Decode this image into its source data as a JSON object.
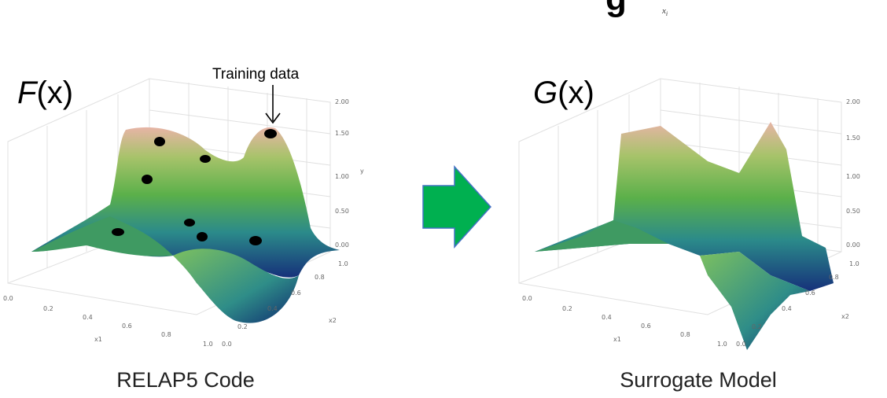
{
  "header": {
    "math_fragment": "g",
    "subscript": "x_i"
  },
  "left": {
    "function_name": "F",
    "function_arg": "(x)",
    "caption": "RELAP5 Code",
    "annotation": "Training data"
  },
  "right": {
    "function_name": "G",
    "function_arg": "(x)",
    "caption": "Surrogate Model"
  },
  "axes": {
    "z_ticks": [
      "0.00",
      "0.50",
      "1.00",
      "1.50",
      "2.00"
    ],
    "z_label": "y",
    "x1_ticks": [
      "0.0",
      "0.2",
      "0.4",
      "0.6",
      "0.8",
      "1.0"
    ],
    "x1_label": "x1",
    "x2_ticks": [
      "0.0",
      "0.2",
      "0.4",
      "0.6",
      "0.8",
      "1.0"
    ],
    "x2_label": "x2"
  },
  "colors": {
    "arrow": "#00b050",
    "arrow_outline": "#4472c4",
    "surface_low": "#1a3f8c",
    "surface_mid": "#4aa85a",
    "surface_high": "#e8b8a8"
  }
}
